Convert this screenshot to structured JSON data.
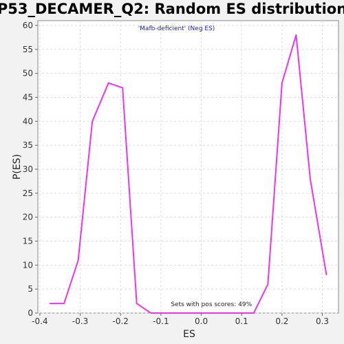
{
  "chart_data": {
    "type": "line",
    "title": "P53_DECAMER_Q2: Random ES distribution",
    "subtitle": "'Mafb-deficient' (Neg ES)",
    "xlabel": "ES",
    "ylabel": "P(ES)",
    "annotation": "Sets with pos scores: 49%",
    "xlim": [
      -0.405,
      0.34
    ],
    "ylim": [
      0,
      61
    ],
    "xticks": [
      "-0.4",
      "-0.3",
      "-0.2",
      "-0.1",
      "0.0",
      "0.1",
      "0.2",
      "0.3"
    ],
    "yticks": [
      "0",
      "5",
      "10",
      "15",
      "20",
      "25",
      "30",
      "35",
      "40",
      "45",
      "50",
      "55",
      "60"
    ],
    "grid": true,
    "line_color": "#ee33ee",
    "series": [
      {
        "x": [
          -0.375,
          -0.34,
          -0.305,
          -0.27,
          -0.23,
          -0.195,
          -0.16,
          -0.125,
          -0.09,
          -0.055,
          -0.02,
          0.015,
          0.05,
          0.09,
          0.13,
          0.165,
          0.2,
          0.235,
          0.27,
          0.31
        ],
        "y": [
          2,
          2,
          11,
          40,
          48,
          47,
          2,
          0,
          0,
          0,
          0,
          0,
          0,
          0,
          0,
          6,
          48,
          58,
          28,
          8
        ]
      }
    ]
  }
}
